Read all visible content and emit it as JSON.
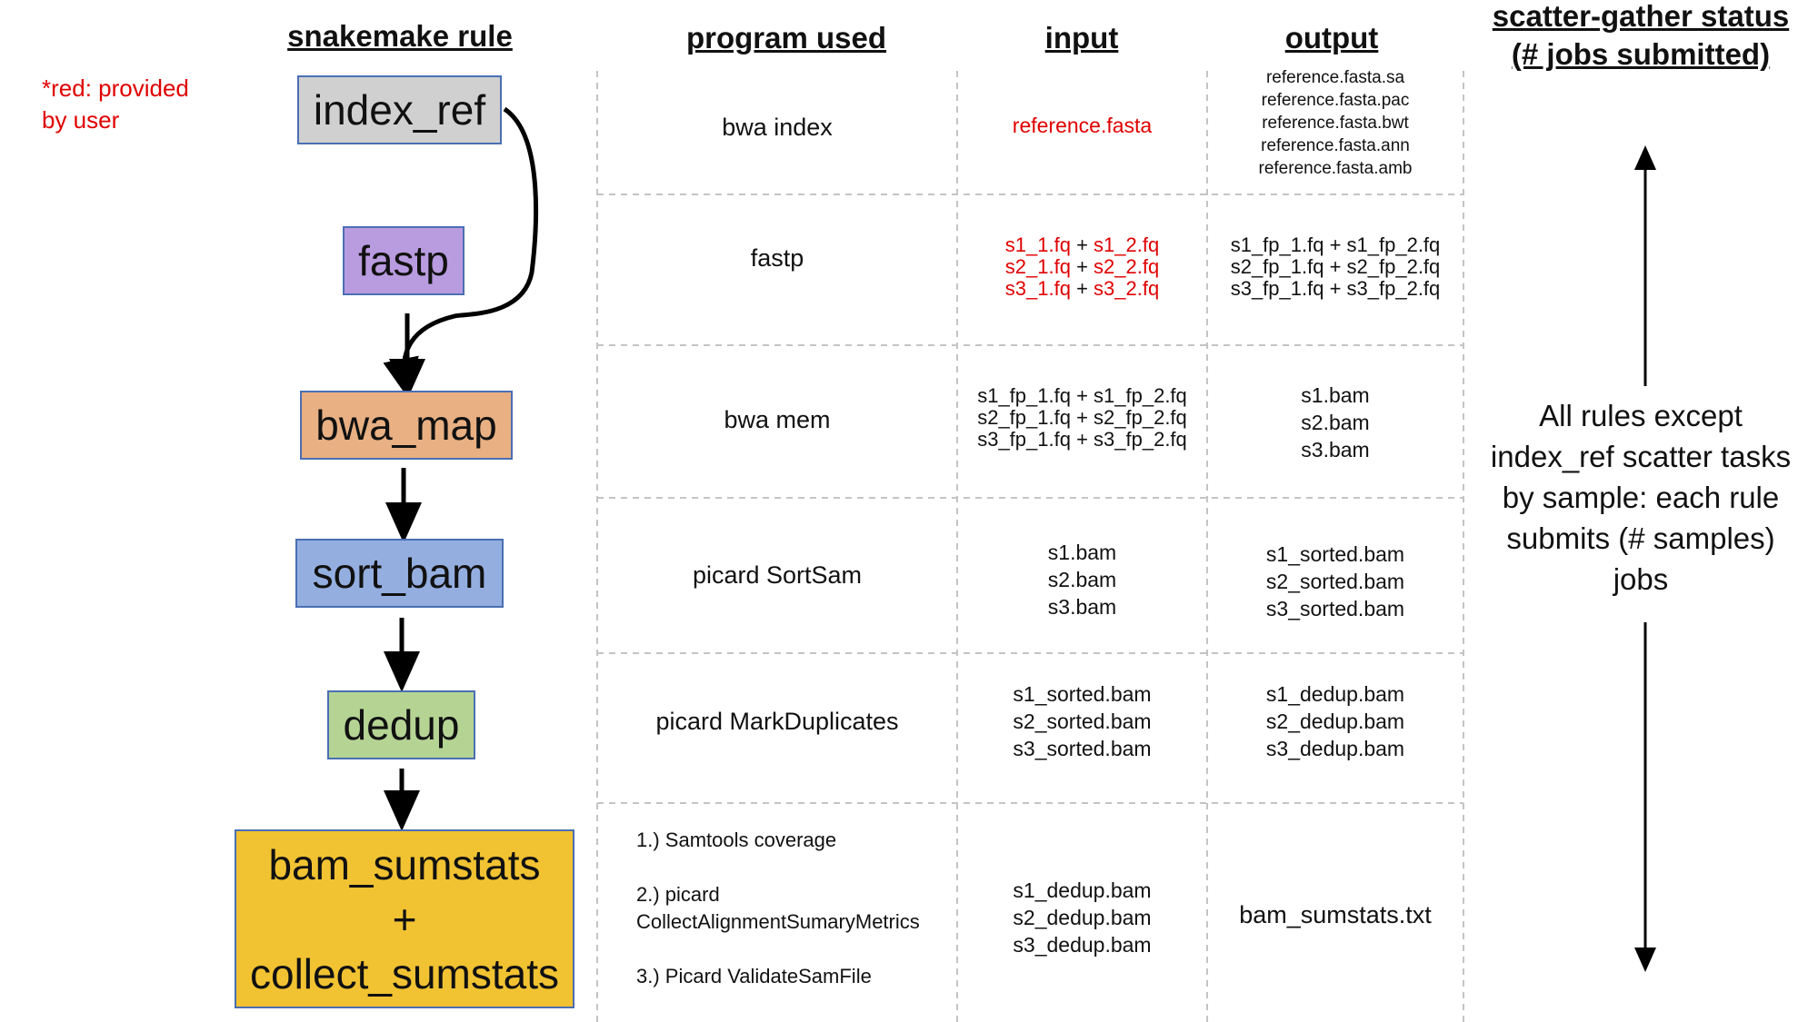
{
  "headers": {
    "rule": "snakemake rule",
    "program": "program used",
    "input": "input",
    "output": "output",
    "status_line1": "scatter-gather status",
    "status_line2": "(# jobs submitted)"
  },
  "note": {
    "line1": "*red: provided",
    "line2": "by user"
  },
  "rules": [
    {
      "label": "index_ref",
      "color": "#d0d0d0"
    },
    {
      "label": "fastp",
      "color": "#b99be0"
    },
    {
      "label": "bwa_map",
      "color": "#e8b083"
    },
    {
      "label": "sort_bam",
      "color": "#94aee0"
    },
    {
      "label": "dedup",
      "color": "#b5d494"
    },
    {
      "label_line1": "bam_sumstats",
      "label_line2": "+",
      "label_line3": "collect_sumstats",
      "color": "#f1c232"
    }
  ],
  "rows": [
    {
      "program": "bwa index",
      "input": [
        "reference.fasta"
      ],
      "output": [
        "reference.fasta.sa",
        "reference.fasta.pac",
        "reference.fasta.bwt",
        "reference.fasta.ann",
        "reference.fasta.amb"
      ]
    },
    {
      "program": "fastp",
      "input": [
        {
          "a": "s1_1.fq",
          "plus": " + ",
          "b": "s1_2.fq"
        },
        {
          "a": "s2_1.fq",
          "plus": " + ",
          "b": "s2_2.fq"
        },
        {
          "a": "s3_1.fq",
          "plus": " + ",
          "b": "s3_2.fq"
        }
      ],
      "output": [
        "s1_fp_1.fq + s1_fp_2.fq",
        "s2_fp_1.fq + s2_fp_2.fq",
        "s3_fp_1.fq + s3_fp_2.fq"
      ]
    },
    {
      "program": "bwa mem",
      "input": [
        "s1_fp_1.fq + s1_fp_2.fq",
        "s2_fp_1.fq + s2_fp_2.fq",
        "s3_fp_1.fq + s3_fp_2.fq"
      ],
      "output": [
        "s1.bam",
        "s2.bam",
        "s3.bam"
      ]
    },
    {
      "program": "picard SortSam",
      "input": [
        "s1.bam",
        "s2.bam",
        "s3.bam"
      ],
      "output": [
        "s1_sorted.bam",
        "s2_sorted.bam",
        "s3_sorted.bam"
      ]
    },
    {
      "program": "picard MarkDuplicates",
      "input": [
        "s1_sorted.bam",
        "s2_sorted.bam",
        "s3_sorted.bam"
      ],
      "output": [
        "s1_dedup.bam",
        "s2_dedup.bam",
        "s3_dedup.bam"
      ]
    },
    {
      "program_steps": [
        "1.) Samtools coverage",
        "2.) picard",
        "CollectAlignmentSumaryMetrics",
        "3.) Picard ValidateSamFile"
      ],
      "input": [
        "s1_dedup.bam",
        "s2_dedup.bam",
        "s3_dedup.bam"
      ],
      "output": [
        "bam_sumstats.txt"
      ]
    }
  ],
  "status_text": [
    "All rules except",
    "index_ref scatter tasks",
    "by sample: each rule",
    "submits (# samples)",
    "jobs"
  ]
}
